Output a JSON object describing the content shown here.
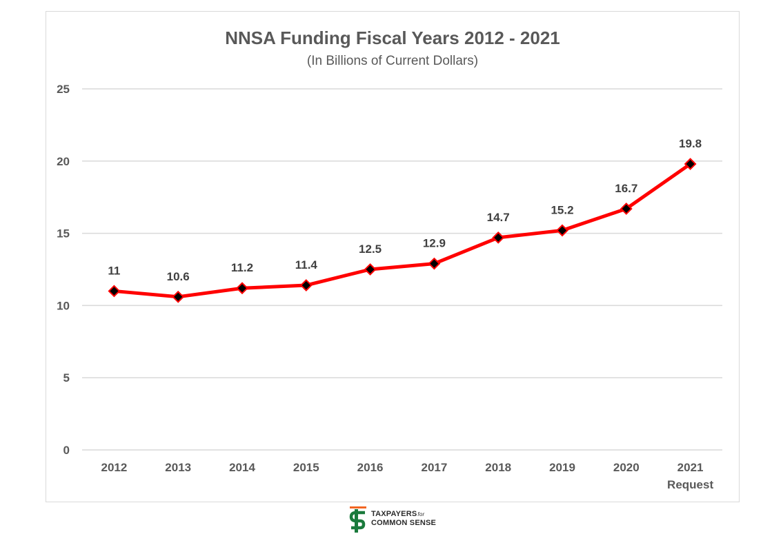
{
  "chart_data": {
    "type": "line",
    "title": "NNSA Funding Fiscal Years 2012 - 2021",
    "subtitle": "(In Billions of Current Dollars)",
    "categories": [
      "2012",
      "2013",
      "2014",
      "2015",
      "2016",
      "2017",
      "2018",
      "2019",
      "2020",
      "2021"
    ],
    "category_sublabels": [
      "",
      "",
      "",
      "",
      "",
      "",
      "",
      "",
      "",
      "Request"
    ],
    "series": [
      {
        "values": [
          11,
          10.6,
          11.2,
          11.4,
          12.5,
          12.9,
          14.7,
          15.2,
          16.7,
          19.8
        ],
        "data_labels": [
          "11",
          "10.6",
          "11.2",
          "11.4",
          "12.5",
          "12.9",
          "14.7",
          "15.2",
          "16.7",
          "19.8"
        ],
        "color": "#ff0000",
        "marker": "diamond",
        "marker_color": "#000000"
      }
    ],
    "ylim": [
      0,
      25
    ],
    "yticks": [
      0,
      5,
      10,
      15,
      20,
      25
    ],
    "grid": true,
    "legend": "none"
  },
  "logo": {
    "line1": "TAXPAYERS",
    "line1_suffix": "for",
    "line2": "COMMON SENSE",
    "accent_color": "#f26522",
    "brand_color": "#1a7a3c"
  }
}
